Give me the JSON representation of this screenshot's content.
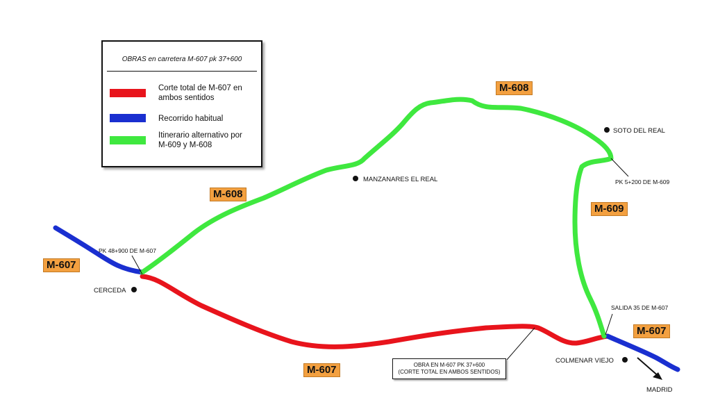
{
  "legend": {
    "title": "OBRAS en carretera M-607 pk 37+600",
    "items": [
      {
        "color": "#e8141c",
        "line1": "Corte total de M-607 en",
        "line2": "ambos sentidos"
      },
      {
        "color": "#1a2fd0",
        "line1": "Recorrido habitual",
        "line2": ""
      },
      {
        "color": "#3fe83f",
        "line1": "Itinerario alternativo por",
        "line2": "M-609 y M-608"
      }
    ]
  },
  "roads": {
    "m608_top": "M-608",
    "m608_left": "M-608",
    "m609": "M-609",
    "m607_left": "M-607",
    "m607_bottom": "M-607",
    "m607_right": "M-607"
  },
  "places": {
    "cerceda": "CERCEDA",
    "manzanares": "MANZANARES EL REAL",
    "soto": "SOTO DEL REAL",
    "colmenar": "COLMENAR VIEJO",
    "madrid": "MADRID"
  },
  "points": {
    "pk48": "PK 48+900 DE M-607",
    "pk5": "PK 5+200 DE M-609",
    "salida35": "SALIDA 35 DE M-607"
  },
  "obra": {
    "line1": "OBRA EN M-607 PK 37+600",
    "line2": "(CORTE TOTAL EN AMBOS SENTIDOS)"
  },
  "colors": {
    "red_route": "#e8141c",
    "blue_route": "#1a2fd0",
    "green_route": "#3fe83f",
    "label_bg": "#f3a040"
  }
}
